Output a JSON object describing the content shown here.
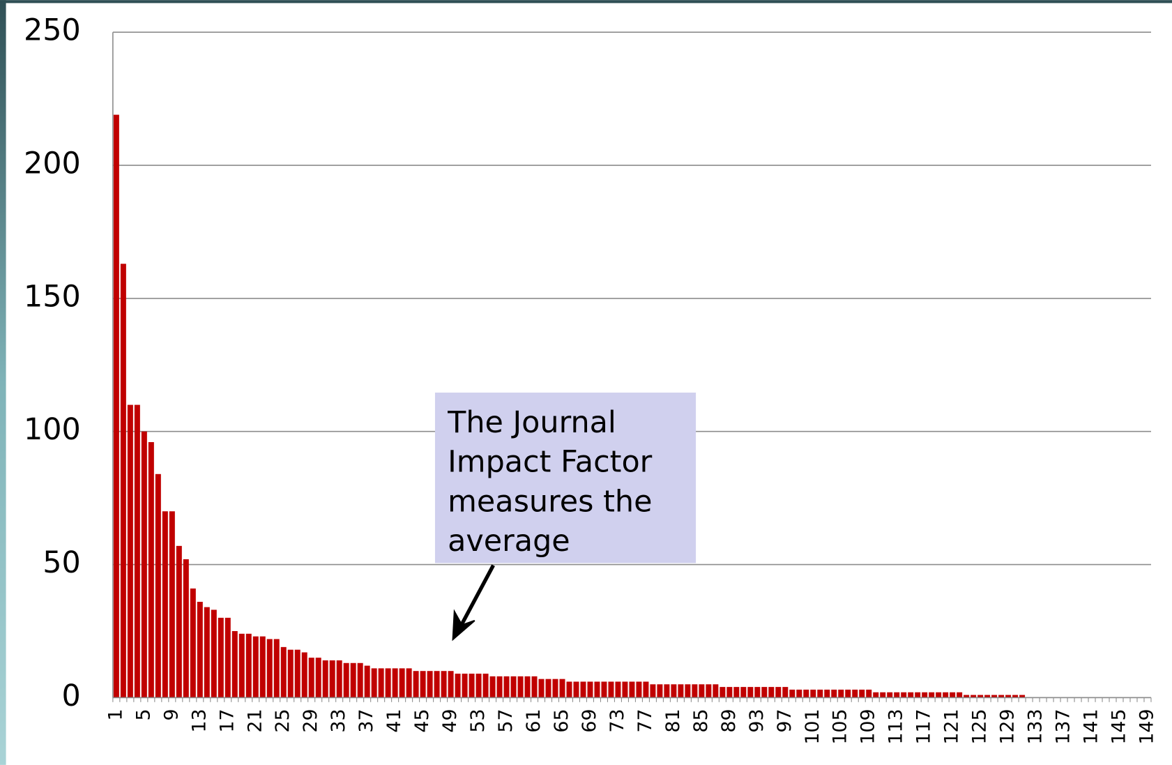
{
  "chart_data": {
    "type": "bar",
    "categories": [
      "1",
      null,
      null,
      null,
      "5",
      null,
      null,
      null,
      "9",
      null,
      null,
      null,
      "13",
      null,
      null,
      null,
      "17",
      null,
      null,
      null,
      "21",
      null,
      null,
      null,
      "25",
      null,
      null,
      null,
      "29",
      null,
      null,
      null,
      "33",
      null,
      null,
      null,
      "37",
      null,
      null,
      null,
      "41",
      null,
      null,
      null,
      "45",
      null,
      null,
      null,
      "49",
      null,
      null,
      null,
      "53",
      null,
      null,
      null,
      "57",
      null,
      null,
      null,
      "61",
      null,
      null,
      null,
      "65",
      null,
      null,
      null,
      "69",
      null,
      null,
      null,
      "73",
      null,
      null,
      null,
      "77",
      null,
      null,
      null,
      "81",
      null,
      null,
      null,
      "85",
      null,
      null,
      null,
      "89",
      null,
      null,
      null,
      "93",
      null,
      null,
      null,
      "97",
      null,
      null,
      null,
      "101",
      null,
      null,
      null,
      "105",
      null,
      null,
      null,
      "109",
      null,
      null,
      null,
      "113",
      null,
      null,
      null,
      "117",
      null,
      null,
      null,
      "121",
      null,
      null,
      null,
      "125",
      null,
      null,
      null,
      "129",
      null,
      null,
      null,
      "133",
      null,
      null,
      null,
      "137",
      null,
      null,
      null,
      "141",
      null,
      null,
      null,
      "145",
      null,
      null,
      null,
      "149"
    ],
    "values": [
      219,
      163,
      110,
      110,
      100,
      96,
      84,
      70,
      70,
      57,
      52,
      41,
      36,
      34,
      33,
      30,
      30,
      25,
      24,
      24,
      23,
      23,
      22,
      22,
      19,
      18,
      18,
      17,
      15,
      15,
      14,
      14,
      14,
      13,
      13,
      13,
      12,
      11,
      11,
      11,
      11,
      11,
      11,
      10,
      10,
      10,
      10,
      10,
      10,
      9,
      9,
      9,
      9,
      9,
      8,
      8,
      8,
      8,
      8,
      8,
      8,
      7,
      7,
      7,
      7,
      6,
      6,
      6,
      6,
      6,
      6,
      6,
      6,
      6,
      6,
      6,
      6,
      5,
      5,
      5,
      5,
      5,
      5,
      5,
      5,
      5,
      5,
      4,
      4,
      4,
      4,
      4,
      4,
      4,
      4,
      4,
      4,
      3,
      3,
      3,
      3,
      3,
      3,
      3,
      3,
      3,
      3,
      3,
      3,
      2,
      2,
      2,
      2,
      2,
      2,
      2,
      2,
      2,
      2,
      2,
      2,
      2,
      1,
      1,
      1,
      1,
      1,
      1,
      1,
      1,
      1,
      0,
      0,
      0,
      0,
      0,
      0,
      0,
      0,
      0,
      0,
      0,
      0,
      0,
      0,
      0,
      0,
      0,
      0
    ],
    "color": "#c00000",
    "ylim": [
      0,
      250
    ],
    "yticks": [
      0,
      50,
      100,
      150,
      200,
      250
    ],
    "grid": true,
    "annotation": [
      "The Journal",
      "Impact Factor",
      "measures the",
      "average"
    ]
  }
}
